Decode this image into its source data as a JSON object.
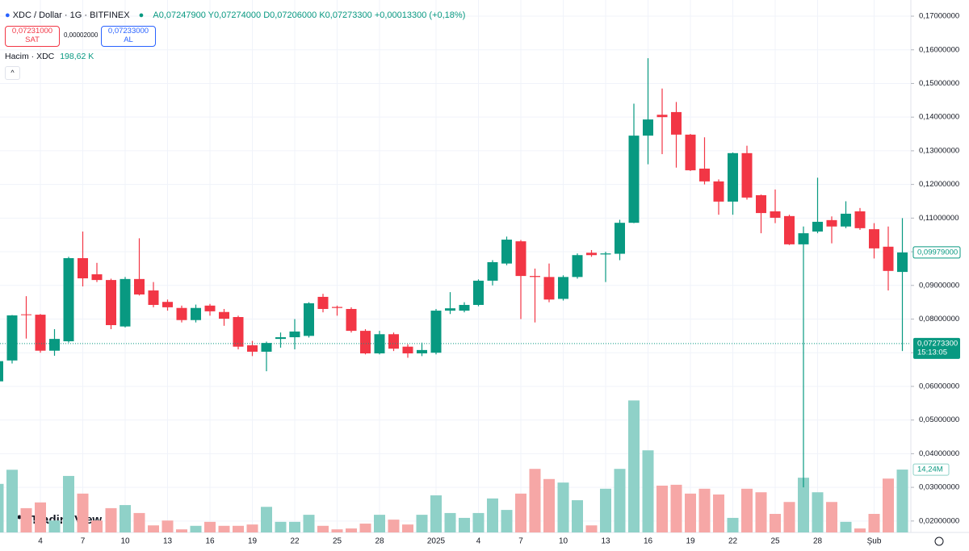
{
  "chart_data": {
    "type": "candlestick",
    "title": "XDC / Dollar · 1G · BITFINEX",
    "legend": {
      "open": "A0,07247900",
      "high": "Y0,07274000",
      "low": "D0,07206000",
      "close": "K0,07273300",
      "change": "+0,00013300 (+0,18%)"
    },
    "trade": {
      "sell_price": "0,07231000",
      "sell": "SAT",
      "spread": "0,00002000",
      "buy_price": "0,07233000",
      "buy": "AL"
    },
    "volume_title": "Hacim · XDC",
    "volume_total": "198,62 K",
    "brand": "TradingView",
    "categories": [
      null,
      null,
      null,
      "4",
      null,
      null,
      "7",
      null,
      null,
      "10",
      null,
      null,
      "13",
      null,
      null,
      "16",
      null,
      null,
      "19",
      null,
      null,
      "22",
      null,
      null,
      "25",
      null,
      null,
      "28",
      null,
      null,
      null,
      "2025",
      null,
      null,
      "4",
      null,
      null,
      "7",
      null,
      null,
      "10",
      null,
      null,
      "13",
      null,
      null,
      "16",
      null,
      null,
      "19",
      null,
      null,
      "22",
      null,
      null,
      "25",
      null,
      null,
      "28",
      null,
      null,
      null,
      "Şub",
      null,
      null
    ],
    "open": [
      0.0615,
      0.0677,
      0.0814,
      0.0813,
      0.0706,
      0.0734,
      0.0981,
      0.0933,
      0.0916,
      0.0778,
      0.0919,
      0.0885,
      0.0851,
      0.0833,
      0.0797,
      0.084,
      0.0821,
      0.0806,
      0.0722,
      0.0703,
      0.0741,
      0.0746,
      0.075,
      0.0866,
      0.0836,
      0.083,
      0.0765,
      0.0698,
      0.0755,
      0.0718,
      0.0698,
      0.07,
      0.0825,
      0.0825,
      0.0842,
      0.0914,
      0.0965,
      0.1031,
      0.0928,
      0.0925,
      0.086,
      0.0925,
      0.0997,
      0.0992,
      0.0994,
      0.1086,
      0.1345,
      0.1407,
      0.1415,
      0.1348,
      0.1247,
      0.1209,
      0.1149,
      0.1293,
      0.1168,
      0.112,
      0.1106,
      0.1022,
      0.106,
      0.1094,
      0.1075,
      0.112,
      0.1067,
      0.1015,
      0.094
    ],
    "high": [
      0.069,
      0.0812,
      0.0868,
      0.0815,
      0.077,
      0.0985,
      0.106,
      0.0967,
      0.092,
      0.0925,
      0.104,
      0.091,
      0.0858,
      0.084,
      0.0843,
      0.0845,
      0.083,
      0.081,
      0.0735,
      0.0733,
      0.076,
      0.08,
      0.085,
      0.0875,
      0.084,
      0.0835,
      0.077,
      0.0765,
      0.076,
      0.0725,
      0.073,
      0.083,
      0.088,
      0.085,
      0.0918,
      0.0975,
      0.1045,
      0.1035,
      0.095,
      0.0965,
      0.093,
      0.0995,
      0.1005,
      0.1,
      0.1095,
      0.144,
      0.1575,
      0.1485,
      0.1445,
      0.135,
      0.134,
      0.1215,
      0.1295,
      0.1315,
      0.117,
      0.1185,
      0.111,
      0.1075,
      0.122,
      0.1105,
      0.115,
      0.113,
      0.1085,
      0.1075,
      0.11
    ],
    "low": [
      0.061,
      0.0668,
      0.0742,
      0.07,
      0.0691,
      0.073,
      0.0897,
      0.091,
      0.077,
      0.0775,
      0.087,
      0.0835,
      0.0825,
      0.079,
      0.079,
      0.081,
      0.078,
      0.071,
      0.069,
      0.0645,
      0.0715,
      0.071,
      0.0745,
      0.082,
      0.081,
      0.076,
      0.0695,
      0.0695,
      0.0705,
      0.0685,
      0.069,
      0.0695,
      0.0815,
      0.082,
      0.0838,
      0.09,
      0.096,
      0.08,
      0.079,
      0.085,
      0.0855,
      0.092,
      0.0985,
      0.091,
      0.0975,
      0.1085,
      0.126,
      0.129,
      0.125,
      0.124,
      0.12,
      0.111,
      0.111,
      0.1155,
      0.1055,
      0.1085,
      0.102,
      0.03,
      0.1055,
      0.1025,
      0.107,
      0.1065,
      0.098,
      0.0885,
      0.0705
    ],
    "close": [
      0.0675,
      0.0811,
      0.0812,
      0.0706,
      0.0741,
      0.0981,
      0.0921,
      0.0916,
      0.0782,
      0.0919,
      0.0873,
      0.0842,
      0.0835,
      0.0797,
      0.0833,
      0.0823,
      0.0801,
      0.0718,
      0.0703,
      0.0729,
      0.0746,
      0.0763,
      0.0847,
      0.083,
      0.0833,
      0.0765,
      0.0698,
      0.0755,
      0.0712,
      0.0698,
      0.0708,
      0.0825,
      0.0832,
      0.0842,
      0.0914,
      0.0969,
      0.1036,
      0.0928,
      0.0925,
      0.0858,
      0.0925,
      0.099,
      0.099,
      0.0995,
      0.1086,
      0.1345,
      0.1393,
      0.14,
      0.1348,
      0.1242,
      0.1209,
      0.1149,
      0.1293,
      0.1161,
      0.1115,
      0.1101,
      0.1022,
      0.1055,
      0.1089,
      0.1075,
      0.1113,
      0.107,
      0.101,
      0.0943,
      0.0998
    ],
    "volume": [
      11.0,
      14.2,
      5.5,
      6.8,
      2.7,
      12.8,
      8.8,
      2.7,
      5.5,
      6.2,
      4.4,
      1.6,
      2.7,
      0.7,
      1.5,
      2.4,
      1.5,
      1.5,
      1.8,
      5.8,
      2.4,
      2.4,
      4.0,
      1.5,
      0.7,
      0.9,
      2.0,
      4.0,
      2.9,
      1.8,
      4.0,
      8.4,
      4.4,
      3.3,
      4.4,
      7.7,
      5.1,
      8.8,
      14.4,
      12.1,
      11.3,
      7.3,
      1.6,
      9.9,
      14.4,
      29.9,
      18.6,
      10.6,
      10.8,
      8.8,
      9.9,
      8.6,
      3.3,
      9.9,
      9.1,
      4.2,
      6.9,
      12.4,
      9.1,
      6.9,
      2.4,
      0.9,
      4.2,
      12.2,
      14.24
    ],
    "volume_label": "14,24M",
    "volume_ylim": [
      0,
      36
    ],
    "ylim": [
      0.0166,
      0.1748
    ],
    "yticks": [
      {
        "value": 0.02,
        "label": "0,02000000"
      },
      {
        "value": 0.03,
        "label": "0,03000000"
      },
      {
        "value": 0.04,
        "label": "0,04000000"
      },
      {
        "value": 0.05,
        "label": "0,05000000"
      },
      {
        "value": 0.06,
        "label": "0,06000000"
      },
      {
        "value": 0.07,
        "label": "0,07000000"
      },
      {
        "value": 0.08,
        "label": "0,08000000"
      },
      {
        "value": 0.09,
        "label": "0,09000000"
      },
      {
        "value": 0.1,
        "label": "0,10000000"
      },
      {
        "value": 0.11,
        "label": "0,11000000"
      },
      {
        "value": 0.12,
        "label": "0,12000000"
      },
      {
        "value": 0.13,
        "label": "0,13000000"
      },
      {
        "value": 0.14,
        "label": "0,14000000"
      },
      {
        "value": 0.15,
        "label": "0,15000000"
      },
      {
        "value": 0.16,
        "label": "0,16000000"
      },
      {
        "value": 0.17,
        "label": "0,17000000"
      }
    ],
    "last_price": 0.072733,
    "last_price_label": "0,07273300",
    "countdown": "15:13:05",
    "marker_price": 0.09979,
    "marker_label": "0,09979000",
    "grid": true,
    "up_color": "#089981",
    "down_color": "#f23645",
    "volume_up_color": "#8fd1c8",
    "volume_down_color": "#f6a7a6"
  }
}
